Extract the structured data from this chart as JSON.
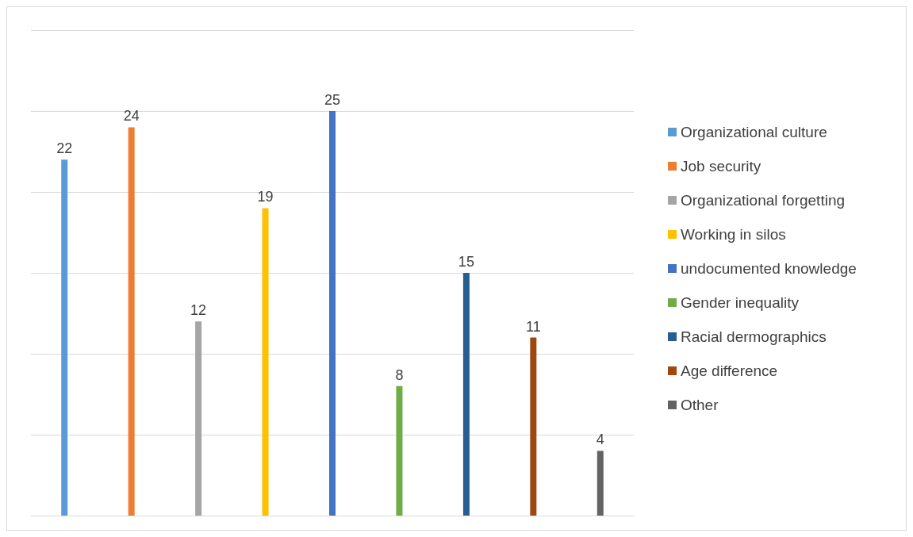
{
  "chart_data": {
    "type": "bar",
    "categories": [
      null,
      null,
      null,
      null,
      null,
      null,
      null,
      null,
      null
    ],
    "series": [
      {
        "name": "Organizational culture",
        "color": "#5b9bd5",
        "values": [
          22,
          null,
          null,
          null,
          null,
          null,
          null,
          null,
          null
        ]
      },
      {
        "name": "Job security",
        "color": "#ed7d31",
        "values": [
          null,
          24,
          null,
          null,
          null,
          null,
          null,
          null,
          null
        ]
      },
      {
        "name": "Organizational forgetting",
        "color": "#a5a5a5",
        "values": [
          null,
          null,
          12,
          null,
          null,
          null,
          null,
          null,
          null
        ]
      },
      {
        "name": "Working in silos",
        "color": "#ffc000",
        "values": [
          null,
          null,
          null,
          19,
          null,
          null,
          null,
          null,
          null
        ]
      },
      {
        "name": "undocumented knowledge",
        "color": "#4472c4",
        "values": [
          null,
          null,
          null,
          null,
          25,
          null,
          null,
          null,
          null
        ]
      },
      {
        "name": "Gender inequality",
        "color": "#70ad47",
        "values": [
          null,
          null,
          null,
          null,
          null,
          8,
          null,
          null,
          null
        ]
      },
      {
        "name": "Racial dermographics",
        "color": "#255e91",
        "values": [
          null,
          null,
          null,
          null,
          null,
          null,
          15,
          null,
          null
        ]
      },
      {
        "name": "Age difference",
        "color": "#9e480e",
        "values": [
          null,
          null,
          null,
          null,
          null,
          null,
          null,
          11,
          null
        ]
      },
      {
        "name": "Other",
        "color": "#636363",
        "values": [
          null,
          null,
          null,
          null,
          null,
          null,
          null,
          null,
          4
        ]
      }
    ],
    "ylim": [
      0,
      30
    ],
    "yticks": [
      0,
      5,
      10,
      15,
      20,
      25,
      30
    ],
    "stacked": true,
    "tick_labels": false,
    "grid": "y",
    "legend": "right",
    "data_labels": true
  }
}
